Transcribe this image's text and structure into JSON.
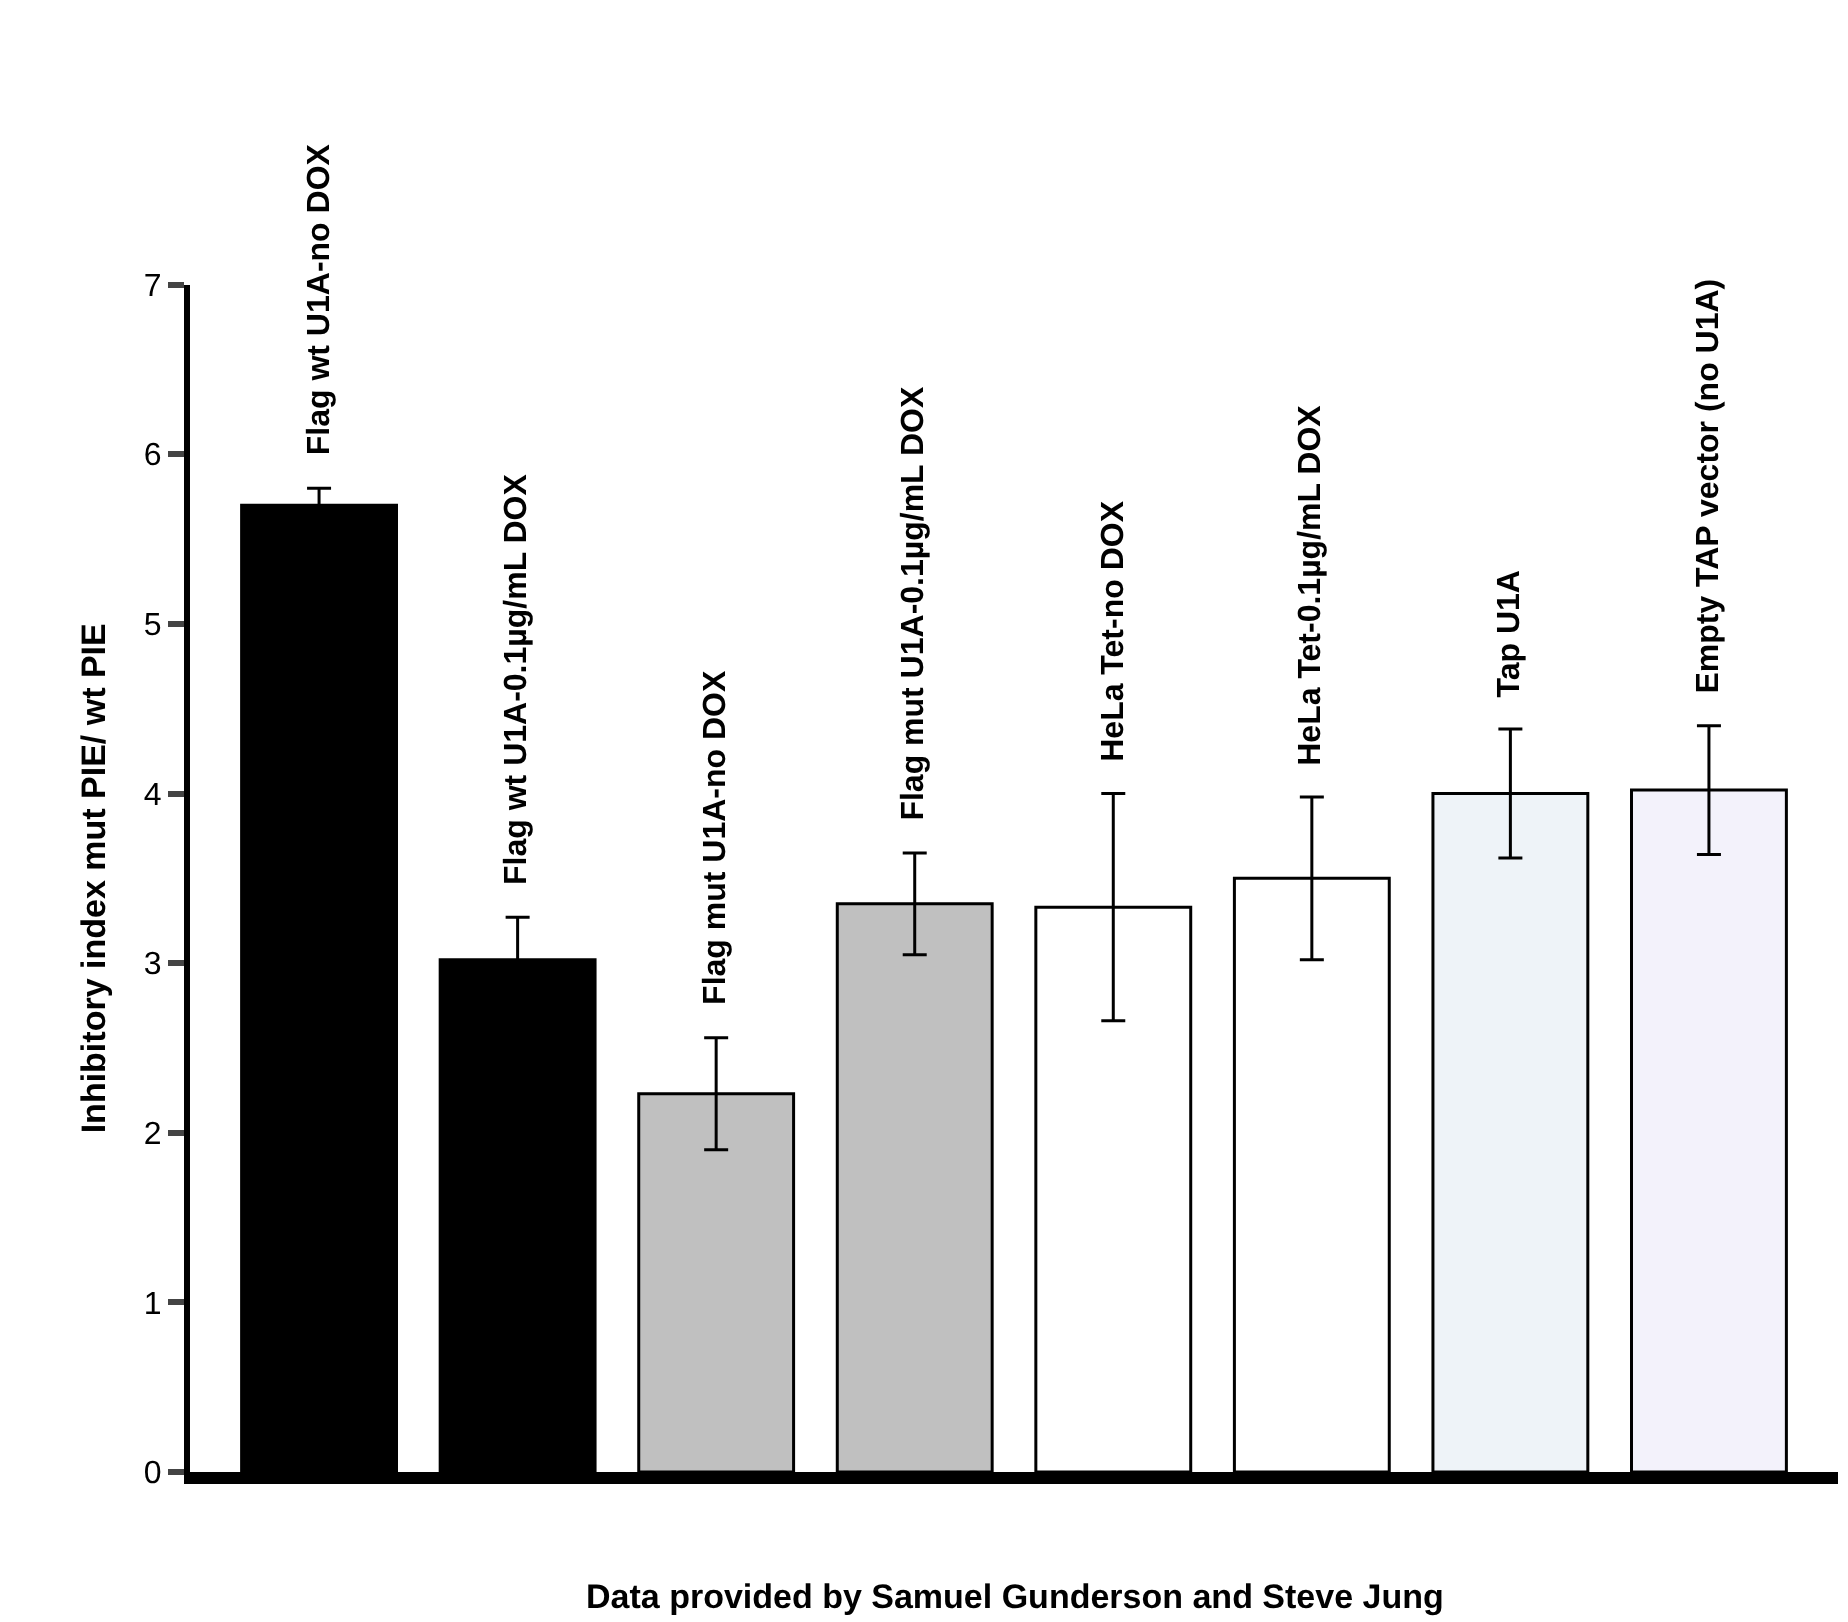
{
  "chart_data": {
    "type": "bar",
    "categories": [
      "Flag wt U1A-no DOX",
      "Flag wt U1A-0.1µg/mL DOX",
      "Flag mut U1A-no DOX",
      "Flag mut U1A-0.1µg/mL DOX",
      "HeLa Tet-no DOX",
      "HeLa Tet-0.1µg/mL DOX",
      "Tap U1A",
      "Empty TAP vector (no U1A)"
    ],
    "values": [
      5.7,
      3.02,
      2.23,
      3.35,
      3.33,
      3.5,
      4.0,
      4.02
    ],
    "errors": [
      0.1,
      0.25,
      0.33,
      0.3,
      0.67,
      0.48,
      0.38,
      0.38
    ],
    "colors": [
      "#000000",
      "#000000",
      "#c0c0c0",
      "#c0c0c0",
      "#ffffff",
      "#ffffff",
      "#eef3f8",
      "#f3f2fb"
    ],
    "ylabel": "Inhibitory index mut PIE/ wt PIE",
    "ylim": [
      0,
      7
    ],
    "yticks": [
      0,
      1,
      2,
      3,
      4,
      5,
      6,
      7
    ],
    "tick_labels": "y",
    "annotations": [
      "Data provided by Samuel Gunderson and Steve Jung"
    ]
  }
}
